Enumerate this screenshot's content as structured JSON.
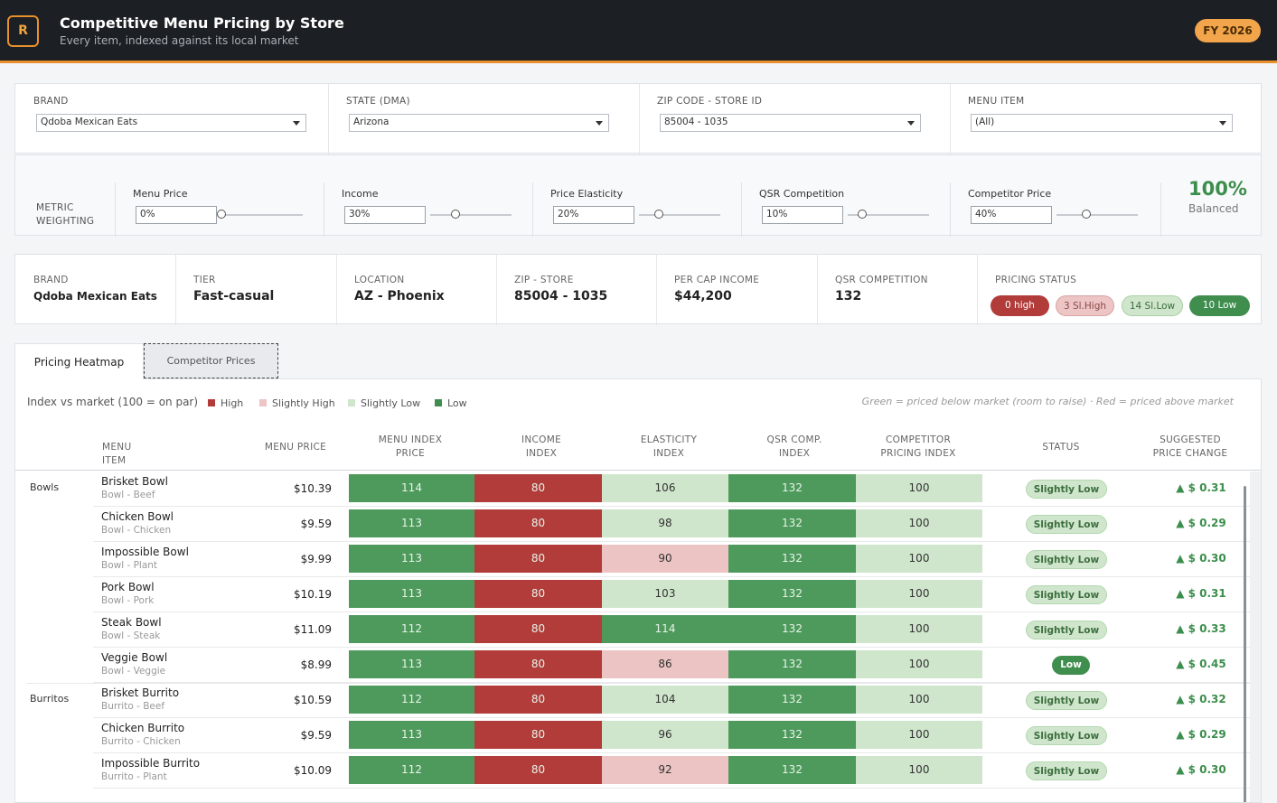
{
  "header": {
    "logo_letter": "R",
    "title": "Competitive Menu Pricing by Store",
    "subtitle": "Every item, indexed against its local market",
    "fy_badge": "FY 2026"
  },
  "filters": [
    {
      "label": "BRAND",
      "value": "Qdoba Mexican Eats"
    },
    {
      "label": "STATE (DMA)",
      "value": "Arizona"
    },
    {
      "label": "ZIP CODE - STORE ID",
      "value": "85004 - 1035"
    },
    {
      "label": "MENU ITEM",
      "value": "(All)"
    }
  ],
  "weights": {
    "label": "METRIC\nWEIGHTING",
    "items": [
      {
        "label": "Menu Price",
        "value": "0%",
        "level": 0.0
      },
      {
        "label": "Income",
        "value": "30%",
        "level": 0.3
      },
      {
        "label": "Price Elasticity",
        "value": "20%",
        "level": 0.2
      },
      {
        "label": "QSR Competition",
        "value": "10%",
        "level": 0.1
      },
      {
        "label": "Competitor Price",
        "value": "40%",
        "level": 0.4
      }
    ],
    "total": "100%",
    "total_label": "Balanced"
  },
  "info": [
    {
      "label": "BRAND",
      "value": "Qdoba Mexican Eats"
    },
    {
      "label": "TIER",
      "value": "Fast-casual"
    },
    {
      "label": "LOCATION",
      "value": "AZ - Phoenix"
    },
    {
      "label": "ZIP - STORE",
      "value": "85004 - 1035"
    },
    {
      "label": "PER CAP INCOME",
      "value": "$44,200"
    },
    {
      "label": "QSR COMPETITION",
      "value": "132"
    }
  ],
  "pricing_status": {
    "label": "PRICING STATUS",
    "pills": [
      {
        "text": "0 high",
        "bg": "#b13c3a",
        "fg": "#ffffff"
      },
      {
        "text": "3 Sl.High",
        "bg": "#ecc5c4",
        "fg": "#8b4a49"
      },
      {
        "text": "14 Sl.Low",
        "bg": "#cfe6cc",
        "fg": "#3d6e3f"
      },
      {
        "text": "10 Low",
        "bg": "#3f8e4e",
        "fg": "#ffffff"
      }
    ]
  },
  "tabs": {
    "heatmap": "Pricing Heatmap",
    "competitor": "Competitor Prices"
  },
  "legend": {
    "title": "Index vs market (100 = on par)",
    "items": [
      {
        "label": "High",
        "color": "#b13c3a"
      },
      {
        "label": "Slightly High",
        "color": "#ecc5c4"
      },
      {
        "label": "Slightly Low",
        "color": "#cfe6cc"
      },
      {
        "label": "Low",
        "color": "#3f8e4e"
      }
    ],
    "note": "Green = priced below market (room to raise) · Red = priced above market"
  },
  "columns": [
    "MENU ITEM",
    "MENU PRICE",
    "MENU INDEX\nPRICE",
    "INCOME\nINDEX",
    "ELASTICITY\nINDEX",
    "QSR COMP.\nINDEX",
    "COMPETITOR\nPRICING INDEX",
    "STATUS",
    "SUGGESTED\nPRICE CHANGE"
  ],
  "colors": {
    "low": "#4e9a5c",
    "slightly_low": "#cfe6cc",
    "slightly_high": "#ebc4c3",
    "high": "#b13c3a"
  },
  "categories": [
    {
      "name": "Bowls",
      "rows": [
        {
          "name": "Brisket Bowl",
          "sub": "Bowl - Beef",
          "price": "$10.39",
          "idx": [
            114,
            80,
            106,
            132,
            100
          ],
          "status": "Slightly Low",
          "change": "▲ $ 0.31"
        },
        {
          "name": "Chicken Bowl",
          "sub": "Bowl - Chicken",
          "price": "$9.59",
          "idx": [
            113,
            80,
            98,
            132,
            100
          ],
          "status": "Slightly Low",
          "change": "▲ $ 0.29"
        },
        {
          "name": "Impossible Bowl",
          "sub": "Bowl - Plant",
          "price": "$9.99",
          "idx": [
            113,
            80,
            90,
            132,
            100
          ],
          "status": "Slightly Low",
          "change": "▲ $ 0.30"
        },
        {
          "name": "Pork Bowl",
          "sub": "Bowl - Pork",
          "price": "$10.19",
          "idx": [
            113,
            80,
            103,
            132,
            100
          ],
          "status": "Slightly Low",
          "change": "▲ $ 0.31"
        },
        {
          "name": "Steak Bowl",
          "sub": "Bowl - Steak",
          "price": "$11.09",
          "idx": [
            112,
            80,
            114,
            132,
            100
          ],
          "status": "Slightly Low",
          "change": "▲ $ 0.33"
        },
        {
          "name": "Veggie Bowl",
          "sub": "Bowl - Veggie",
          "price": "$8.99",
          "idx": [
            113,
            80,
            86,
            132,
            100
          ],
          "status": "Low",
          "change": "▲ $ 0.45"
        }
      ]
    },
    {
      "name": "Burritos",
      "rows": [
        {
          "name": "Brisket Burrito",
          "sub": "Burrito - Beef",
          "price": "$10.59",
          "idx": [
            112,
            80,
            104,
            132,
            100
          ],
          "status": "Slightly Low",
          "change": "▲ $ 0.32"
        },
        {
          "name": "Chicken Burrito",
          "sub": "Burrito - Chicken",
          "price": "$9.59",
          "idx": [
            113,
            80,
            96,
            132,
            100
          ],
          "status": "Slightly Low",
          "change": "▲ $ 0.29"
        },
        {
          "name": "Impossible Burrito",
          "sub": "Burrito - Plant",
          "price": "$10.09",
          "idx": [
            112,
            80,
            92,
            132,
            100
          ],
          "status": "Slightly Low",
          "change": "▲ $ 0.30"
        }
      ]
    }
  ]
}
